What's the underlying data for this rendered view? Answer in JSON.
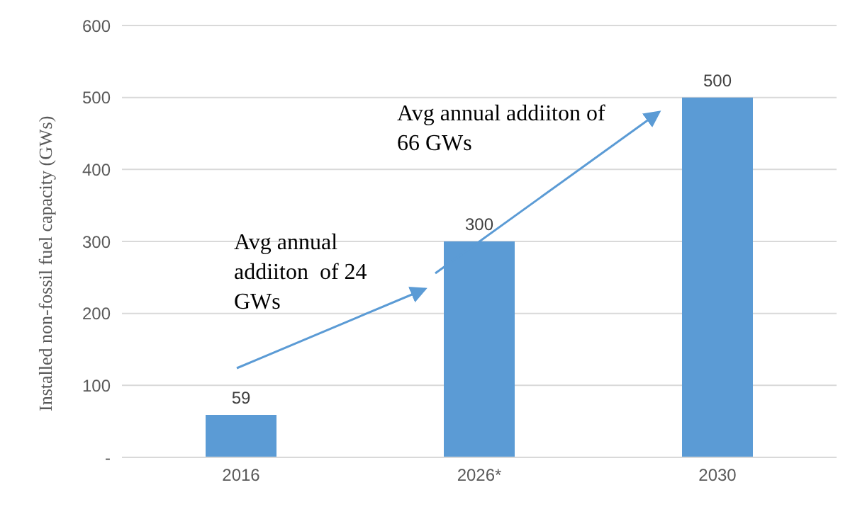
{
  "chart_data": {
    "type": "bar",
    "ylabel": "Installed non-fossil fuel capacity (GWs)",
    "categories": [
      "2016",
      "2026*",
      "2030"
    ],
    "values": [
      59,
      300,
      500
    ],
    "color": "#5b9bd5",
    "ylim": [
      0,
      600
    ],
    "yticks": [
      {
        "value": 0,
        "label": "-"
      },
      100,
      200,
      300,
      400,
      500,
      600
    ],
    "grid": "y",
    "data_labels": true,
    "annotations": [
      "Avg annual addiiton  of 24 GWs",
      "Avg annual addiiton of 66 GWs"
    ]
  }
}
